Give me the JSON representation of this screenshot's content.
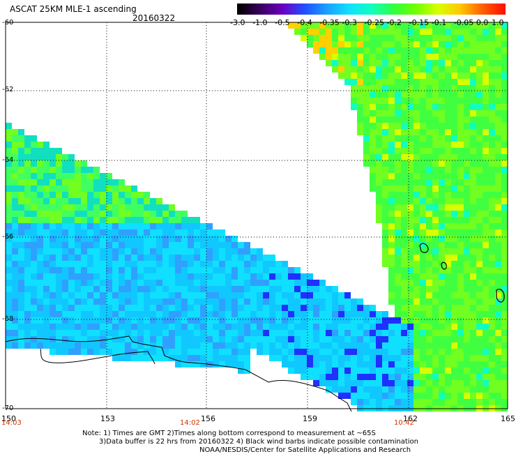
{
  "title": "ASCAT 25KM MLE-1 ascending",
  "date": "20160322",
  "colorbar": {
    "ticks": [
      "-3.0",
      "-1.0",
      "-0.5",
      "-0.4",
      "-0.35",
      "-0.3",
      "-0.25",
      "-0.2",
      "-0.15",
      "-0.1",
      "-0.05",
      "0.0",
      "1.0"
    ],
    "colors": [
      "#000000",
      "#3a0060",
      "#6a00c0",
      "#2050ff",
      "#1aa0ff",
      "#10e0ff",
      "#10ffc0",
      "#30ff40",
      "#70ff00",
      "#d8ff00",
      "#ffc800",
      "#ff6000",
      "#ff1000"
    ]
  },
  "lat_labels": [
    "-60",
    "-62",
    "-64",
    "-66",
    "-68",
    "-70"
  ],
  "lon_labels": [
    "150",
    "153",
    "156",
    "159",
    "162",
    "165"
  ],
  "times": [
    "14:03",
    "14:02",
    "10:42"
  ],
  "notes": [
    "Note: 1) Times are GMT 2)Times along bottom correspond to measurement at ~65S",
    "3)Data buffer is 22 hrs from 20160322 4) Black wind barbs indicate possible contamination",
    "NOAA/NESDIS/Center for Satellite Applications and Research"
  ]
}
